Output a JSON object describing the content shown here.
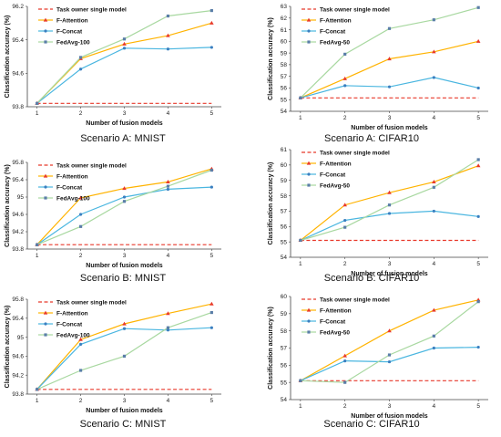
{
  "chart_data": [
    {
      "type": "line",
      "caption": "Scenario A: MNIST",
      "xlabel": "Number of fusion models",
      "ylabel": "Classification accuracy (%)",
      "x": [
        1,
        2,
        3,
        4,
        5
      ],
      "ylim": [
        93.8,
        96.2
      ],
      "yticks": [
        93.8,
        94.6,
        95.4,
        96.2
      ],
      "ytick_labels": [
        "93.8",
        "94.6",
        "95.4",
        "96.2"
      ],
      "legend": "top-left",
      "series": [
        {
          "name": "Task owner single model",
          "style": "dashed",
          "color": "#e8392b",
          "marker": "none",
          "values": [
            93.88,
            93.88,
            93.88,
            93.88,
            93.88
          ]
        },
        {
          "name": "F-Attention",
          "style": "solid",
          "color": "#ffb300",
          "marker": "triangle",
          "values": [
            93.88,
            94.95,
            95.3,
            95.5,
            95.8
          ]
        },
        {
          "name": "F-Concat",
          "style": "solid",
          "color": "#4ab6e0",
          "marker": "circle",
          "values": [
            93.88,
            94.7,
            95.2,
            95.18,
            95.22
          ]
        },
        {
          "name": "FedAvg-100",
          "style": "solid",
          "color": "#a8d8a0",
          "marker": "square",
          "values": [
            93.88,
            94.98,
            95.42,
            95.97,
            96.1
          ]
        }
      ]
    },
    {
      "type": "line",
      "caption": "Scenario A: CIFAR10",
      "xlabel": "Number of fusion models",
      "ylabel": "Classification accuracy (%)",
      "x": [
        1,
        2,
        3,
        4,
        5
      ],
      "ylim": [
        54,
        63
      ],
      "yticks": [
        54,
        55,
        56,
        57,
        58,
        59,
        60,
        61,
        62,
        63
      ],
      "ytick_labels": [
        "54",
        "55",
        "56",
        "57",
        "58",
        "59",
        "60",
        "61",
        "62",
        "63"
      ],
      "legend": "top-left",
      "series": [
        {
          "name": "Task owner single model",
          "style": "dashed",
          "color": "#e8392b",
          "marker": "none",
          "values": [
            55.15,
            55.15,
            55.15,
            55.15,
            55.15
          ]
        },
        {
          "name": "F-Attention",
          "style": "solid",
          "color": "#ffb300",
          "marker": "triangle",
          "values": [
            55.15,
            56.8,
            58.5,
            59.1,
            60.0
          ]
        },
        {
          "name": "F-Concat",
          "style": "solid",
          "color": "#4ab6e0",
          "marker": "circle",
          "values": [
            55.15,
            56.2,
            56.1,
            56.9,
            56.0
          ]
        },
        {
          "name": "FedAvg-50",
          "style": "solid",
          "color": "#a8d8a0",
          "marker": "square",
          "values": [
            55.15,
            58.9,
            61.1,
            61.85,
            62.9
          ]
        }
      ]
    },
    {
      "type": "line",
      "caption": "Scenario B: MNIST",
      "xlabel": "Number of fusion models",
      "ylabel": "Classification accuracy (%)",
      "x": [
        1,
        2,
        3,
        4,
        5
      ],
      "ylim": [
        93.8,
        95.8
      ],
      "yticks": [
        93.8,
        94.2,
        94.6,
        95.0,
        95.4,
        95.8
      ],
      "ytick_labels": [
        "93.8",
        "94.2",
        "94.6",
        "95",
        "95.4",
        "95.8"
      ],
      "legend": "top-left",
      "series": [
        {
          "name": "Task owner single model",
          "style": "dashed",
          "color": "#e8392b",
          "marker": "none",
          "values": [
            93.9,
            93.9,
            93.9,
            93.9,
            93.9
          ]
        },
        {
          "name": "F-Attention",
          "style": "solid",
          "color": "#ffb300",
          "marker": "triangle",
          "values": [
            93.9,
            94.98,
            95.2,
            95.35,
            95.65
          ]
        },
        {
          "name": "F-Concat",
          "style": "solid",
          "color": "#4ab6e0",
          "marker": "circle",
          "values": [
            93.9,
            94.6,
            95.0,
            95.18,
            95.23
          ]
        },
        {
          "name": "FedAvg-100",
          "style": "solid",
          "color": "#a8d8a0",
          "marker": "square",
          "values": [
            93.9,
            94.32,
            94.9,
            95.25,
            95.62
          ]
        }
      ]
    },
    {
      "type": "line",
      "caption": "Scenario B: CIFAR10",
      "xlabel": "Number of fusion models",
      "ylabel": "Classification accuracy (%)",
      "x": [
        1,
        2,
        3,
        4,
        5
      ],
      "ylim": [
        54,
        61
      ],
      "yticks": [
        54,
        55,
        56,
        57,
        58,
        59,
        60,
        61
      ],
      "ytick_labels": [
        "54",
        "55",
        "56",
        "57",
        "58",
        "59",
        "60",
        "61"
      ],
      "legend": "top-left",
      "series": [
        {
          "name": "Task owner single model",
          "style": "dashed",
          "color": "#e8392b",
          "marker": "none",
          "values": [
            55.1,
            55.1,
            55.1,
            55.1,
            55.1
          ]
        },
        {
          "name": "F-Attention",
          "style": "solid",
          "color": "#ffb300",
          "marker": "triangle",
          "values": [
            55.1,
            57.4,
            58.2,
            58.9,
            59.95
          ]
        },
        {
          "name": "F-Concat",
          "style": "solid",
          "color": "#4ab6e0",
          "marker": "circle",
          "values": [
            55.1,
            56.4,
            56.85,
            57.0,
            56.65
          ]
        },
        {
          "name": "FedAvg-50",
          "style": "solid",
          "color": "#a8d8a0",
          "marker": "square",
          "values": [
            55.1,
            55.95,
            57.4,
            58.55,
            60.35
          ]
        }
      ]
    },
    {
      "type": "line",
      "caption": "Scenario C: MNIST",
      "xlabel": "Number of fusion models",
      "ylabel": "Classification accuracy (%)",
      "x": [
        1,
        2,
        3,
        4,
        5
      ],
      "ylim": [
        93.8,
        95.8
      ],
      "yticks": [
        93.8,
        94.2,
        94.6,
        95.0,
        95.4,
        95.8
      ],
      "ytick_labels": [
        "93.8",
        "94.2",
        "94.6",
        "95",
        "95.4",
        "95.8"
      ],
      "legend": "top-left",
      "series": [
        {
          "name": "Task owner single model",
          "style": "dashed",
          "color": "#e8392b",
          "marker": "none",
          "values": [
            93.9,
            93.9,
            93.9,
            93.9,
            93.9
          ]
        },
        {
          "name": "F-Attention",
          "style": "solid",
          "color": "#ffb300",
          "marker": "triangle",
          "values": [
            93.9,
            94.95,
            95.28,
            95.5,
            95.7
          ]
        },
        {
          "name": "F-Concat",
          "style": "solid",
          "color": "#4ab6e0",
          "marker": "circle",
          "values": [
            93.9,
            94.85,
            95.18,
            95.15,
            95.2
          ]
        },
        {
          "name": "FedAvg-100",
          "style": "solid",
          "color": "#a8d8a0",
          "marker": "square",
          "values": [
            93.9,
            94.3,
            94.6,
            95.2,
            95.52
          ]
        }
      ]
    },
    {
      "type": "line",
      "caption": "Scenario C: CIFAR10",
      "xlabel": "Number of fusion models",
      "ylabel": "Classification accuracy (%)",
      "x": [
        1,
        2,
        3,
        4,
        5
      ],
      "ylim": [
        54,
        60
      ],
      "yticks": [
        54,
        55,
        56,
        57,
        58,
        59,
        60
      ],
      "ytick_labels": [
        "54",
        "55",
        "56",
        "57",
        "58",
        "59",
        "60"
      ],
      "legend": "top-left",
      "series": [
        {
          "name": "Task owner single model",
          "style": "dashed",
          "color": "#e8392b",
          "marker": "none",
          "values": [
            55.1,
            55.1,
            55.1,
            55.1,
            55.1
          ]
        },
        {
          "name": "F-Attention",
          "style": "solid",
          "color": "#ffb300",
          "marker": "triangle",
          "values": [
            55.1,
            56.55,
            58.0,
            59.2,
            59.8
          ]
        },
        {
          "name": "F-Concat",
          "style": "solid",
          "color": "#4ab6e0",
          "marker": "circle",
          "values": [
            55.1,
            56.25,
            56.2,
            57.0,
            57.05
          ]
        },
        {
          "name": "FedAvg-50",
          "style": "solid",
          "color": "#a8d8a0",
          "marker": "square",
          "values": [
            55.1,
            55.0,
            56.6,
            57.7,
            59.7
          ]
        }
      ]
    }
  ]
}
